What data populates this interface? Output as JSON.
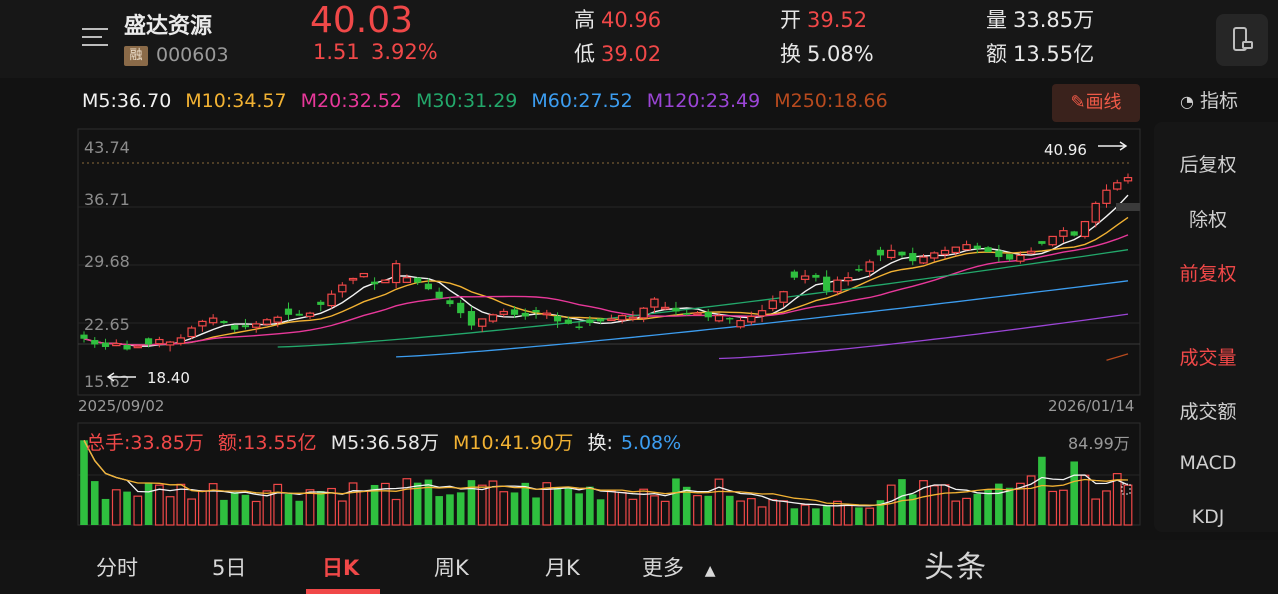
{
  "stock": {
    "name": "盛达资源",
    "badge": "融",
    "code": "000603",
    "price": "40.03",
    "change": "1.51",
    "change_pct": "3.92%"
  },
  "quote": {
    "high_label": "高",
    "high": "40.96",
    "low_label": "低",
    "low": "39.02",
    "open_label": "开",
    "open": "39.52",
    "turnover_label": "换",
    "turnover": "5.08%",
    "volume_label": "量",
    "volume": "33.85万",
    "amount_label": "额",
    "amount": "13.55亿"
  },
  "ma_legend": [
    {
      "label": "M5:36.70",
      "color": "#f2f2f2"
    },
    {
      "label": "M10:34.57",
      "color": "#f2b233"
    },
    {
      "label": "M20:32.52",
      "color": "#e8389a"
    },
    {
      "label": "M30:31.29",
      "color": "#23a86b"
    },
    {
      "label": "M60:27.52",
      "color": "#3c9df0"
    },
    {
      "label": "M120:23.49",
      "color": "#9b45d6"
    },
    {
      "label": "M250:18.66",
      "color": "#b84a1e"
    }
  ],
  "toolbar": {
    "draw_label": "画线",
    "indicator_label": "指标"
  },
  "side_menu": [
    "后复权",
    "除权",
    "前复权",
    "成交量",
    "成交额",
    "MACD",
    "KDJ"
  ],
  "side_menu_active": [
    "前复权",
    "成交量"
  ],
  "chart_axis": {
    "y_ticks": [
      "43.74",
      "36.71",
      "29.68",
      "22.65",
      "15.62"
    ],
    "start_date": "2025/09/02",
    "end_date": "2026/01/14",
    "high_marker": "40.96",
    "low_marker": "18.40"
  },
  "volume_legend": {
    "total": "总手:33.85万",
    "amount": "额:13.55亿",
    "m5": "M5:36.58万",
    "m10": "M10:41.90万",
    "turnover_label": "换:",
    "turnover": "5.08%",
    "max": "84.99万"
  },
  "tabs": [
    "分时",
    "5日",
    "日K",
    "周K",
    "月K",
    "更多"
  ],
  "active_tab": "日K",
  "watermark": "头条",
  "colors": {
    "up": "#f04848",
    "down": "#2fbf3f",
    "background": "#121212"
  },
  "chart_data": {
    "type": "candlestick",
    "x_range": [
      "2025/09/02",
      "2026/01/14"
    ],
    "ylim": [
      15.62,
      43.74
    ],
    "y_ticks": [
      43.74,
      36.71,
      29.68,
      22.65,
      15.62
    ],
    "candles_close": [
      20.5,
      19.8,
      19.5,
      19.9,
      19.2,
      19.6,
      19.8,
      20.4,
      20.1,
      20.6,
      21.8,
      22.6,
      23.0,
      22.4,
      21.6,
      21.9,
      22.3,
      22.8,
      23.1,
      23.4,
      23.3,
      23.6,
      24.6,
      25.9,
      27.0,
      27.8,
      28.4,
      27.1,
      27.6,
      29.6,
      27.9,
      27.3,
      26.5,
      25.4,
      24.7,
      23.6,
      22.1,
      22.9,
      23.4,
      23.8,
      23.4,
      23.2,
      23.7,
      23.6,
      22.6,
      22.3,
      21.9,
      22.4,
      22.6,
      22.9,
      23.3,
      23.1,
      24.2,
      25.3,
      24.3,
      23.8,
      23.5,
      23.6,
      23.1,
      23.3,
      22.9,
      22.7,
      23.2,
      23.9,
      25.1,
      26.2,
      27.9,
      28.1,
      27.9,
      26.3,
      27.6,
      27.9,
      28.9,
      29.8,
      30.6,
      31.2,
      30.6,
      29.9,
      30.4,
      30.9,
      31.2,
      31.6,
      31.9,
      31.4,
      31.0,
      30.4,
      30.1,
      30.6,
      31.1,
      32.0,
      32.9,
      33.6,
      33.0,
      34.7,
      36.9,
      38.5,
      39.4,
      40.03
    ],
    "ma_series": [
      "M5",
      "M10",
      "M20",
      "M30",
      "M60",
      "M120",
      "M250"
    ],
    "volume_unit": "万",
    "volume_max": 84.99
  }
}
